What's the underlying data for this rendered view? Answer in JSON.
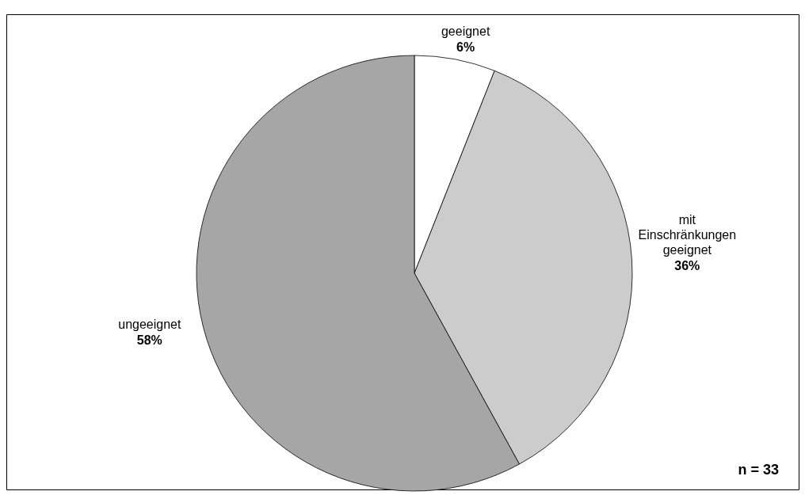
{
  "chart_data": {
    "type": "pie",
    "categories": [
      "geeignet",
      "mit Einschränkungen geeignet",
      "ungeeignet"
    ],
    "values": [
      6,
      36,
      58
    ],
    "value_labels": [
      "6%",
      "36%",
      "58%"
    ],
    "colors": [
      "#ffffff",
      "#cccccc",
      "#a6a6a6"
    ],
    "annotations": [
      "n = 33"
    ]
  }
}
